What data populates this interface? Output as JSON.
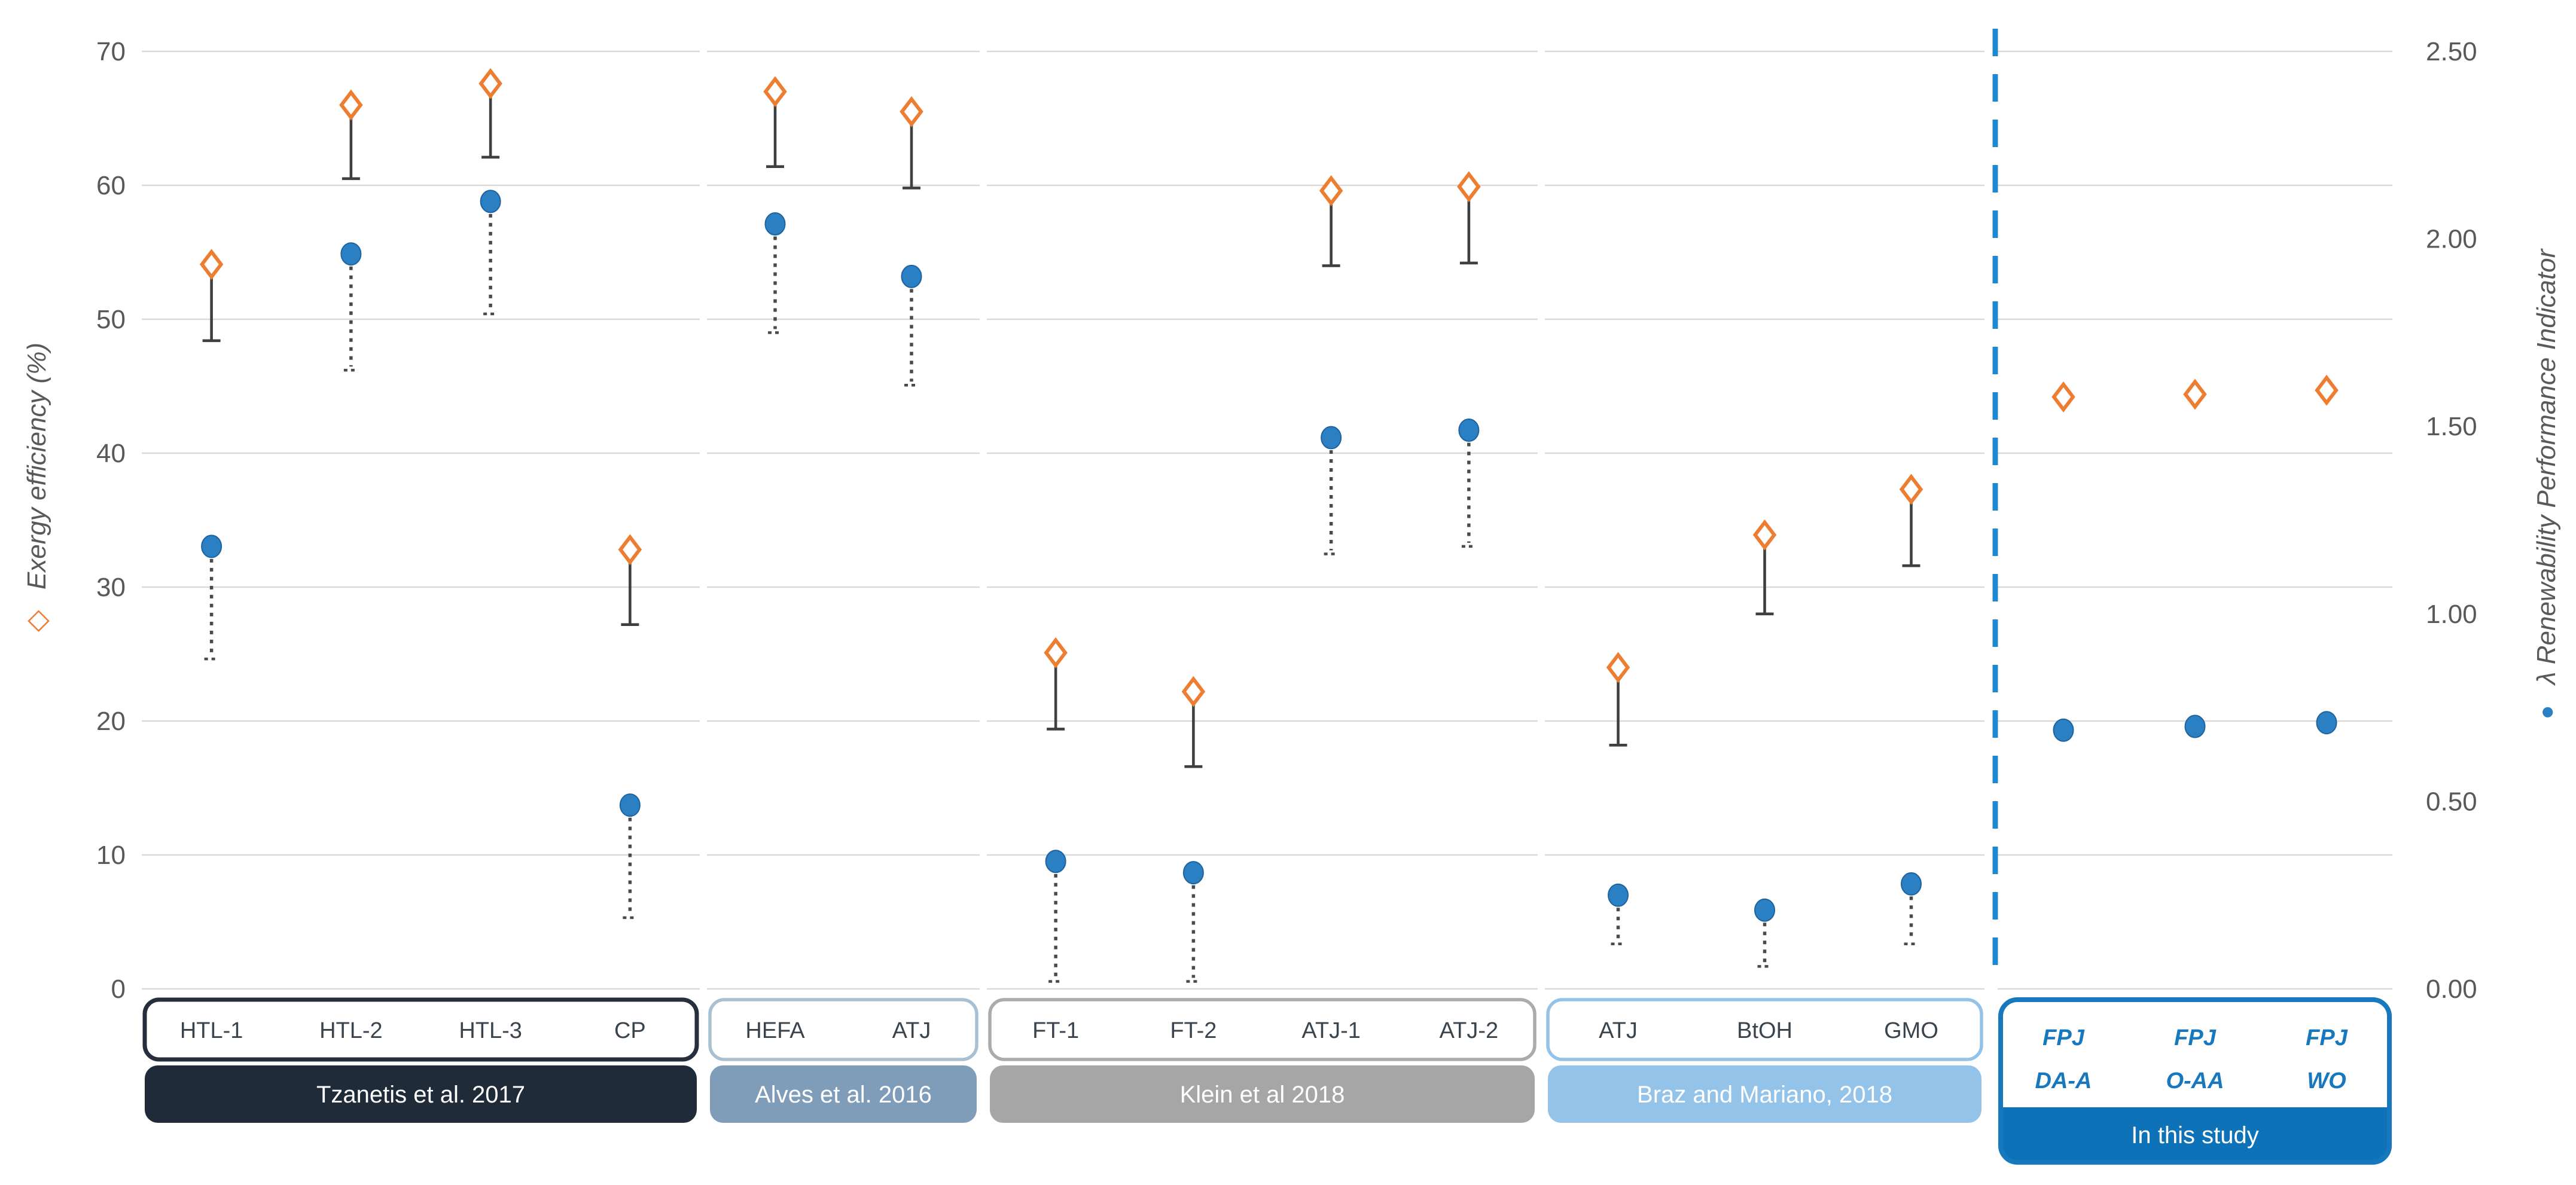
{
  "axes": {
    "left": {
      "title": "Exergy efficiency (%)",
      "legend_marker": "orange-open-diamond",
      "ticks": [
        "70",
        "60",
        "50",
        "40",
        "30",
        "20",
        "10",
        "0"
      ]
    },
    "right": {
      "title": "λ Renewability Performance Indicator",
      "legend_marker": "blue-filled-circle",
      "ticks": [
        "2.50",
        "2.00",
        "1.50",
        "1.00",
        "0.50",
        "0.00"
      ]
    }
  },
  "colors": {
    "gridline": "#d9d9d9",
    "tick_text": "#595959",
    "category_text": "#3a444e",
    "diamond_stroke": "#ed7d31",
    "circle_fill": "#2b80c4",
    "circle_stroke": "#1e639e",
    "solid_whisker": "#3f3f3f",
    "dotted_whisker": "#4a4a4a",
    "separator": "#1e88d2",
    "study_text": "#1878be",
    "group_label_text": "#ffffff"
  },
  "chart_data": {
    "type": "scatter",
    "title": "",
    "ylabel_left": "Exergy efficiency (%)",
    "ylabel_right": "λ Renewability Performance Indicator",
    "ylim_left": [
      0,
      70
    ],
    "ylim_right": [
      0.0,
      2.5
    ],
    "grid": "horizontal-light-gray",
    "legend_position": "rotated-axis-titles",
    "series_legend": [
      {
        "name": "Exergy efficiency (%)",
        "marker": "open-orange-diamond",
        "axis": "left",
        "whisker": "solid-down"
      },
      {
        "name": "λ Renewability Performance Indicator",
        "marker": "filled-blue-circle",
        "axis": "right",
        "whisker": "dotted-down"
      }
    ],
    "groups": [
      {
        "label": "Tzanetis et al. 2017",
        "bar_fill": "#1f2b38",
        "box_border": "#25303c",
        "points": [
          {
            "category": "HTL-1",
            "exergy": 54.1,
            "exergy_low": 48.4,
            "lambda": 1.18,
            "lambda_low": 0.88
          },
          {
            "category": "HTL-2",
            "exergy": 66.0,
            "exergy_low": 60.5,
            "lambda": 1.96,
            "lambda_low": 1.65
          },
          {
            "category": "HTL-3",
            "exergy": 67.6,
            "exergy_low": 62.1,
            "lambda": 2.1,
            "lambda_low": 1.8
          },
          {
            "category": "CP",
            "exergy": 32.8,
            "exergy_low": 27.2,
            "lambda": 0.49,
            "lambda_low": 0.19
          }
        ]
      },
      {
        "label": "Alves et al. 2016",
        "bar_fill": "#7f9cb9",
        "box_border": "#a9bfd2",
        "points": [
          {
            "category": "HEFA",
            "exergy": 67.0,
            "exergy_low": 61.4,
            "lambda": 2.04,
            "lambda_low": 1.75
          },
          {
            "category": "ATJ",
            "exergy": 65.5,
            "exergy_low": 59.8,
            "lambda": 1.9,
            "lambda_low": 1.61
          }
        ]
      },
      {
        "label": "Klein et al 2018",
        "bar_fill": "#a6a6a6",
        "box_border": "#ababab",
        "points": [
          {
            "category": "FT-1",
            "exergy": 25.1,
            "exergy_low": 19.4,
            "lambda": 0.34,
            "lambda_low": 0.02
          },
          {
            "category": "FT-2",
            "exergy": 22.2,
            "exergy_low": 16.6,
            "lambda": 0.31,
            "lambda_low": 0.02
          },
          {
            "category": "ATJ-1",
            "exergy": 59.6,
            "exergy_low": 54.0,
            "lambda": 1.47,
            "lambda_low": 1.16
          },
          {
            "category": "ATJ-2",
            "exergy": 59.9,
            "exergy_low": 54.2,
            "lambda": 1.49,
            "lambda_low": 1.18
          }
        ]
      },
      {
        "label": "Braz and Mariano, 2018",
        "bar_fill": "#94c3ea",
        "box_border": "#94c3ea",
        "points": [
          {
            "category": "ATJ",
            "exergy": 24.0,
            "exergy_low": 18.2,
            "lambda": 0.25,
            "lambda_low": 0.12
          },
          {
            "category": "BtOH",
            "exergy": 33.9,
            "exergy_low": 28.0,
            "lambda": 0.21,
            "lambda_low": 0.06
          },
          {
            "category": "GMO",
            "exergy": 37.3,
            "exergy_low": 31.6,
            "lambda": 0.28,
            "lambda_low": 0.12
          }
        ]
      },
      {
        "label": "In this study",
        "bar_fill": "#0e72b8",
        "box_border": "#1878be",
        "study_style": true,
        "points": [
          {
            "category": "FPJ DA-A",
            "category_lines": [
              "FPJ",
              "DA-A"
            ],
            "exergy": 44.2,
            "exergy_low": null,
            "lambda": 0.69,
            "lambda_low": null
          },
          {
            "category": "FPJ O-AA",
            "category_lines": [
              "FPJ",
              "O-AA"
            ],
            "exergy": 44.4,
            "exergy_low": null,
            "lambda": 0.7,
            "lambda_low": null
          },
          {
            "category": "FPJ WO",
            "category_lines": [
              "FPJ",
              "WO"
            ],
            "exergy": 44.7,
            "exergy_low": null,
            "lambda": 0.71,
            "lambda_low": null
          }
        ]
      }
    ]
  }
}
